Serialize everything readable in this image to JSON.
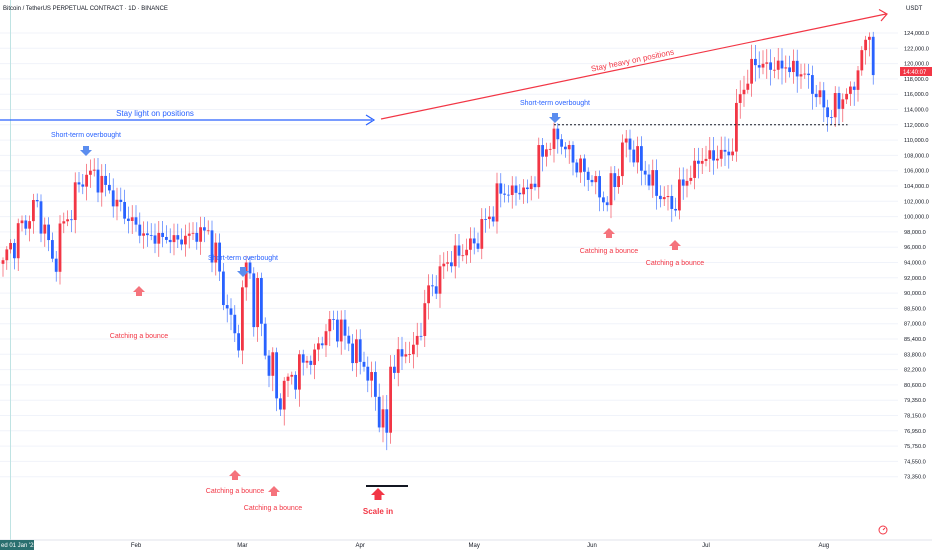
{
  "header": {
    "title": "Bitcoin / TetherUS PERPETUAL CONTRACT · 1D · BINANCE"
  },
  "price_scale": {
    "currency": "USDT",
    "last_price_label": "14:40:07",
    "ticks": [
      "124,000.0",
      "122,000.0",
      "120,000.0",
      "118,000.0",
      "116,000.0",
      "114,000.0",
      "112,000.0",
      "110,000.0",
      "108,000.0",
      "106,000.0",
      "104,000.0",
      "102,000.0",
      "100,000.0",
      "98,000.0",
      "96,000.0",
      "94,000.0",
      "92,000.0",
      "90,000.0",
      "88,500.0",
      "87,000.0",
      "85,400.0",
      "83,800.0",
      "82,200.0",
      "80,600.0",
      "79,350.0",
      "78,150.0",
      "76,950.0",
      "75,750.0",
      "74,550.0",
      "73,350.0"
    ]
  },
  "time_scale": {
    "current_date": "ed 01 Jan '25",
    "ticks": [
      "Feb",
      "Mar",
      "Apr",
      "May",
      "Jun",
      "Jul",
      "Aug"
    ]
  },
  "annotations": {
    "stay_light": "Stay light on positions",
    "stay_heavy": "Stay heavy on positions",
    "short_term_overbought": "Short-term overbought",
    "catching_bounce": "Catching a bounce",
    "scale_in": "Scale in"
  },
  "colors": {
    "up": "#f23645",
    "down": "#2962ff",
    "grid": "#f0f3fa",
    "text": "#131722"
  },
  "chart_data": {
    "type": "candlestick",
    "title": "Bitcoin / TetherUS PERPETUAL CONTRACT · 1D · BINANCE",
    "ylabel": "USDT",
    "ylim": [
      73350,
      126500
    ],
    "xrange": [
      "2024-12-28",
      "2025-08-14"
    ],
    "keyframes": [
      {
        "date": "2024-12-28",
        "close": 94300
      },
      {
        "date": "2025-01-06",
        "close": 102000
      },
      {
        "date": "2025-01-10",
        "close": 94500
      },
      {
        "date": "2025-01-17",
        "close": 104200
      },
      {
        "date": "2025-01-20",
        "close": 106000
      },
      {
        "date": "2025-01-27",
        "close": 102200
      },
      {
        "date": "2025-02-02",
        "close": 97500
      },
      {
        "date": "2025-02-12",
        "close": 97000
      },
      {
        "date": "2025-02-20",
        "close": 98200
      },
      {
        "date": "2025-02-25",
        "close": 88500
      },
      {
        "date": "2025-02-28",
        "close": 84200
      },
      {
        "date": "2025-03-02",
        "close": 94000
      },
      {
        "date": "2025-03-10",
        "close": 79500
      },
      {
        "date": "2025-03-20",
        "close": 84300
      },
      {
        "date": "2025-03-25",
        "close": 87400
      },
      {
        "date": "2025-04-02",
        "close": 82500
      },
      {
        "date": "2025-04-08",
        "close": 76800
      },
      {
        "date": "2025-04-09",
        "close": 82500
      },
      {
        "date": "2025-04-15",
        "close": 84800
      },
      {
        "date": "2025-04-22",
        "close": 93500
      },
      {
        "date": "2025-05-01",
        "close": 96500
      },
      {
        "date": "2025-05-08",
        "close": 103000
      },
      {
        "date": "2025-05-15",
        "close": 103600
      },
      {
        "date": "2025-05-22",
        "close": 111500
      },
      {
        "date": "2025-05-25",
        "close": 108800
      },
      {
        "date": "2025-06-01",
        "close": 104500
      },
      {
        "date": "2025-06-05",
        "close": 101500
      },
      {
        "date": "2025-06-10",
        "close": 110200
      },
      {
        "date": "2025-06-15",
        "close": 105500
      },
      {
        "date": "2025-06-22",
        "close": 101000
      },
      {
        "date": "2025-06-28",
        "close": 107300
      },
      {
        "date": "2025-07-08",
        "close": 108500
      },
      {
        "date": "2025-07-10",
        "close": 116000
      },
      {
        "date": "2025-07-14",
        "close": 119800
      },
      {
        "date": "2025-07-22",
        "close": 119500
      },
      {
        "date": "2025-07-28",
        "close": 118500
      },
      {
        "date": "2025-08-02",
        "close": 113000
      },
      {
        "date": "2025-08-08",
        "close": 117000
      },
      {
        "date": "2025-08-13",
        "close": 123500
      },
      {
        "date": "2025-08-14",
        "close": 118500
      }
    ],
    "levels": [
      {
        "name": "support",
        "from": "2025-05-22",
        "to": "2025-08-02",
        "value": 112000
      }
    ]
  }
}
